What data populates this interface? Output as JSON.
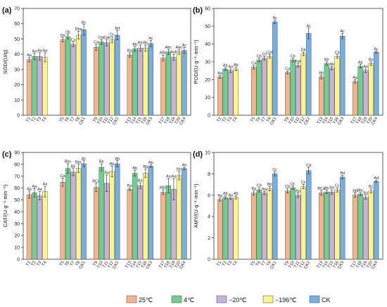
{
  "series_colors": [
    "#f6b38a",
    "#6fcf8e",
    "#c7b2dc",
    "#fbf48b",
    "#78aee0"
  ],
  "legend": [
    "25℃",
    "4℃",
    "−20℃",
    "−196℃",
    "CK"
  ],
  "chart_data": [
    {
      "type": "bar",
      "panel_label": "(a)",
      "ylabel": "SOD/(U/g)",
      "ylim": [
        0,
        70
      ],
      "yticks": [
        0,
        10,
        20,
        30,
        40,
        50,
        60,
        70
      ],
      "groups": [
        {
          "labels": [
            "T1",
            "T2",
            "T3",
            "T4"
          ],
          "values": [
            36.5,
            38.5,
            38.5,
            38.0
          ],
          "errors": [
            1.5,
            2.0,
            2.5,
            3.0
          ],
          "letters": [
            "Aa",
            "Aa",
            "Aa",
            "Aa"
          ]
        },
        {
          "labels": [
            "T5",
            "T6",
            "T7",
            "T8",
            "CK1"
          ],
          "values": [
            49.5,
            51.5,
            46.5,
            52.5,
            56.0
          ],
          "errors": [
            1.5,
            1.5,
            1.5,
            2.5,
            3.5
          ],
          "letters": [
            "Da",
            "Db",
            "Ca",
            "Dba",
            "Bc"
          ]
        },
        {
          "labels": [
            "T9",
            "T10",
            "T11",
            "T12",
            "CK2"
          ],
          "values": [
            44.5,
            48.0,
            47.5,
            49.5,
            52.5
          ],
          "errors": [
            2.0,
            1.5,
            2.0,
            2.0,
            3.0
          ],
          "letters": [
            "Ca",
            "Cbc",
            "Cab",
            "Cc",
            "Bd"
          ]
        },
        {
          "labels": [
            "T13",
            "T14",
            "T15",
            "T16",
            "CK3"
          ],
          "values": [
            39.5,
            43.5,
            44.0,
            44.0,
            47.0
          ],
          "errors": [
            1.5,
            1.5,
            2.0,
            2.0,
            2.0
          ],
          "letters": [
            "Ba",
            "Bb",
            "Bb",
            "Bb",
            "Ac"
          ]
        },
        {
          "labels": [
            "T17",
            "T18",
            "T19",
            "T20",
            "CK4"
          ],
          "values": [
            37.5,
            41.5,
            38.0,
            41.5,
            42.5
          ],
          "errors": [
            2.0,
            1.5,
            2.0,
            1.5,
            2.0
          ],
          "letters": [
            "ABa",
            "Abc",
            "Aab",
            "Abc",
            "Ac"
          ]
        }
      ]
    },
    {
      "type": "bar",
      "panel_label": "(b)",
      "ylabel": "POD/(U·g⁻¹·min⁻¹)",
      "ylim": [
        0,
        60
      ],
      "yticks": [
        0,
        10,
        20,
        30,
        40,
        50,
        60
      ],
      "groups": [
        {
          "labels": [
            "T1",
            "T2",
            "T3",
            "T4"
          ],
          "values": [
            21.5,
            26.0,
            25.0,
            26.0
          ],
          "errors": [
            0.8,
            0.8,
            1.0,
            1.0
          ],
          "letters": [
            "Ba",
            "Aa",
            "Aa",
            "Ab"
          ]
        },
        {
          "labels": [
            "T5",
            "T6",
            "T7",
            "T8",
            "CK1"
          ],
          "values": [
            27.0,
            31.0,
            32.0,
            33.0,
            52.5
          ],
          "errors": [
            1.0,
            1.0,
            1.0,
            1.0,
            1.0
          ],
          "letters": [
            "Ca",
            "Cb",
            "Cc",
            "CDb",
            "Ac"
          ]
        },
        {
          "labels": [
            "T9",
            "T10",
            "T11",
            "T12",
            "CK2"
          ],
          "values": [
            24.0,
            31.0,
            28.0,
            34.5,
            46.0
          ],
          "errors": [
            0.8,
            1.0,
            1.0,
            1.0,
            3.0
          ],
          "letters": [
            "Ca",
            "Cb",
            "Bab",
            "Db",
            "Ac"
          ]
        },
        {
          "labels": [
            "T13",
            "T14",
            "T15",
            "T16",
            "CK3"
          ],
          "values": [
            21.5,
            29.0,
            26.5,
            33.0,
            44.5
          ],
          "errors": [
            1.0,
            1.0,
            1.0,
            1.0,
            1.5
          ],
          "letters": [
            "Bb",
            "Bb",
            "Ab",
            "Cb",
            "Ac"
          ]
        },
        {
          "labels": [
            "T17",
            "T18",
            "T19",
            "T20",
            "CK4"
          ],
          "values": [
            19.0,
            27.5,
            25.0,
            29.0,
            35.5
          ],
          "errors": [
            1.0,
            1.0,
            1.0,
            1.0,
            0.5
          ],
          "letters": [
            "Aa",
            "Ab",
            "Ab",
            "Bb",
            "Ac"
          ]
        }
      ]
    },
    {
      "type": "bar",
      "panel_label": "(c)",
      "ylabel": "CAT/(U·g⁻¹·min⁻¹)",
      "ylim": [
        0,
        90
      ],
      "yticks": [
        0,
        10,
        20,
        30,
        40,
        50,
        60,
        70,
        80,
        90
      ],
      "groups": [
        {
          "labels": [
            "T1",
            "T2",
            "T3",
            "T4"
          ],
          "values": [
            54.5,
            56.0,
            53.5,
            57.0
          ],
          "errors": [
            3.0,
            3.5,
            3.5,
            4.5
          ],
          "letters": [
            "Aa",
            "Aa",
            "Aa",
            "Aa"
          ]
        },
        {
          "labels": [
            "T5",
            "T6",
            "T7",
            "T8",
            "CK1"
          ],
          "values": [
            65.0,
            76.5,
            73.5,
            76.5,
            80.5
          ],
          "errors": [
            3.5,
            4.0,
            3.0,
            3.5,
            2.5
          ],
          "letters": [
            "Ca",
            "Bbc",
            "Bb",
            "Bbc",
            "Ac"
          ]
        },
        {
          "labels": [
            "T9",
            "T10",
            "T11",
            "T12",
            "CK2"
          ],
          "values": [
            60.5,
            77.5,
            64.0,
            74.0,
            80.5
          ],
          "errors": [
            3.5,
            3.0,
            7.0,
            4.5,
            2.5
          ],
          "letters": [
            "BCa",
            "Bb",
            "Ba",
            "Bb",
            "Ab"
          ]
        },
        {
          "labels": [
            "T13",
            "T14",
            "T15",
            "T16",
            "CK3"
          ],
          "values": [
            59.0,
            72.5,
            62.0,
            72.5,
            78.5
          ],
          "errors": [
            1.0,
            2.5,
            2.5,
            3.5,
            1.0
          ],
          "letters": [
            "Ba",
            "Bb",
            "Ba",
            "Bb",
            "Ab"
          ]
        },
        {
          "labels": [
            "T17",
            "T18",
            "T19",
            "T20",
            "CK4"
          ],
          "values": [
            56.5,
            62.0,
            59.0,
            70.5,
            76.5
          ],
          "errors": [
            2.0,
            6.0,
            9.0,
            3.5,
            1.0
          ],
          "letters": [
            "ABa",
            "Aa",
            "Aa",
            "Bb",
            "Ab"
          ]
        }
      ]
    },
    {
      "type": "bar",
      "panel_label": "(d)",
      "ylabel": "AMY/(U·g⁻¹·min⁻¹)",
      "ylim": [
        0,
        10
      ],
      "yticks": [
        0,
        2,
        4,
        6,
        8,
        10
      ],
      "groups": [
        {
          "labels": [
            "T1",
            "T2",
            "T3",
            "T4"
          ],
          "values": [
            5.6,
            5.8,
            5.7,
            5.8
          ],
          "errors": [
            0.15,
            0.15,
            0.1,
            0.15
          ],
          "letters": [
            "Aa",
            "Ab",
            "Aa",
            "Ab"
          ]
        },
        {
          "labels": [
            "T5",
            "T6",
            "T7",
            "T8",
            "CK1"
          ],
          "values": [
            6.2,
            6.5,
            6.2,
            6.6,
            8.0
          ],
          "errors": [
            0.2,
            0.2,
            0.15,
            0.2,
            0.2
          ],
          "letters": [
            "Ba",
            "Cb",
            "Ba",
            "Bb",
            "Cc"
          ]
        },
        {
          "labels": [
            "T9",
            "T10",
            "T11",
            "T12",
            "CK2"
          ],
          "values": [
            6.4,
            6.7,
            6.0,
            6.8,
            8.3
          ],
          "errors": [
            0.2,
            0.15,
            0.2,
            0.2,
            0.3
          ],
          "letters": [
            "Cb",
            "Dc",
            "Ba",
            "Cc",
            "Cd"
          ]
        },
        {
          "labels": [
            "T13",
            "T14",
            "T15",
            "T16",
            "CK3"
          ],
          "values": [
            6.2,
            6.3,
            6.3,
            6.5,
            7.7
          ],
          "errors": [
            0.2,
            0.15,
            0.2,
            0.2,
            0.15
          ],
          "letters": [
            "BCa",
            "Bb",
            "Ba",
            "Cc",
            "Bd"
          ]
        },
        {
          "labels": [
            "T17",
            "T18",
            "T19",
            "T20",
            "CK4"
          ],
          "values": [
            6.0,
            6.1,
            5.8,
            6.4,
            7.3
          ],
          "errors": [
            0.2,
            0.15,
            0.2,
            0.2,
            0.1
          ],
          "letters": [
            "Bb",
            "Bbc",
            "Ba",
            "Bc",
            "Ad"
          ]
        }
      ]
    }
  ]
}
